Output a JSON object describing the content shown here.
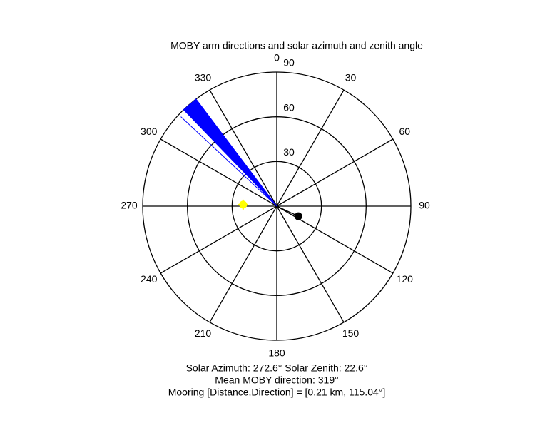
{
  "chart_data": {
    "type": "polar",
    "title": "MOBY arm directions and solar azimuth and zenith angle",
    "theta_zero": "top",
    "theta_direction": "clockwise",
    "thetaticks": [
      0,
      30,
      60,
      90,
      120,
      150,
      180,
      210,
      240,
      270,
      300,
      330
    ],
    "rlim": [
      0,
      90
    ],
    "rticks": [
      30,
      60,
      90
    ],
    "arm_wedge": {
      "theta": [
        316,
        323
      ],
      "r": 90,
      "color": "#0000ff"
    },
    "arm_line": {
      "theta": 313,
      "r": 88,
      "color": "#0000ff"
    },
    "solar": {
      "theta": 272.6,
      "r": 22.6,
      "color": "#ffff00"
    },
    "mooring": {
      "theta": 115.04,
      "r": 16,
      "color": "#000000"
    },
    "annotations": [
      "Solar Azimuth: 272.6° Solar Zenith: 22.6°",
      "Mean MOBY direction: 319°",
      "Mooring [Distance,Direction] = [0.21 km, 115.04°]"
    ]
  }
}
